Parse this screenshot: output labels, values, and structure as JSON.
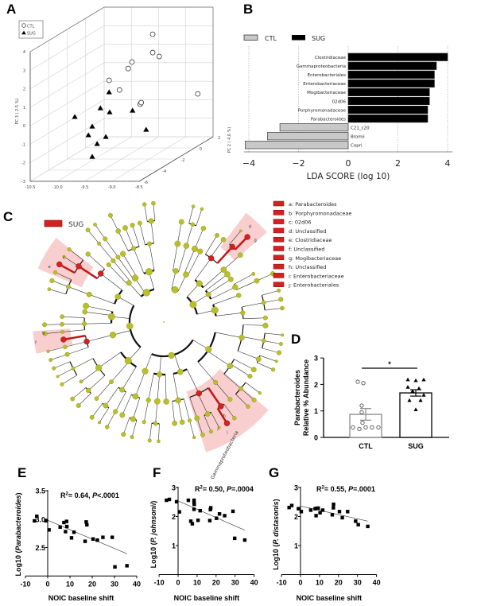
{
  "panel_labels": {
    "a": "A",
    "b": "B",
    "c": "C",
    "d": "D",
    "e": "E",
    "f": "F",
    "g": "G"
  },
  "colors": {
    "sug_red": "#d42020",
    "node_green": "#b8bf2b",
    "highlight_pink": "#f4a6a6",
    "ctl_gray": "#c8c8c8",
    "sug_black": "#000000"
  },
  "chart_data": [
    {
      "type": "scatter",
      "projection": "3d",
      "ylabel": "PC 3 ( 2.5 %)",
      "zlabel": "PC 2 ( 4.6 %)",
      "xlim": [
        -10.5,
        -8.5
      ],
      "ylim": [
        -3,
        4
      ],
      "zlim": [
        -6,
        2
      ],
      "xticks": [
        "-10.5",
        "-10.0",
        "-9.5",
        "-9.0",
        "-8.5"
      ],
      "yticks": [
        "-3",
        "-2",
        "-1",
        "0",
        "1",
        "2",
        "3",
        "4"
      ],
      "zticks": [
        "-6",
        "-4",
        "-2",
        "0",
        "2"
      ],
      "grid": true,
      "legend": "top-left",
      "series": [
        {
          "name": "CTL",
          "marker": "circle-open",
          "points": [
            [
              -8.93,
              -2,
              3.74
            ],
            [
              -8.93,
              -2,
              2.75
            ],
            [
              -8.81,
              -2,
              2.54
            ],
            [
              -9.31,
              -2,
              2.24
            ],
            [
              -9.38,
              -2,
              1.89
            ],
            [
              -9.73,
              -2,
              1.25
            ],
            [
              -9.54,
              -2,
              0.73
            ],
            [
              -9.16,
              -2,
              -0.04
            ],
            [
              -9.14,
              -2,
              0.05
            ],
            [
              -8.78,
              2,
              -0.68
            ]
          ]
        },
        {
          "name": "SUG",
          "marker": "triangle-filled",
          "points": [
            [
              -9.73,
              -2,
              0.61
            ],
            [
              -9.89,
              -2,
              -0.25
            ],
            [
              -9.72,
              -2,
              -0.47
            ],
            [
              -9.3,
              -2,
              -0.38
            ],
            [
              -10.36,
              -2,
              -0.72
            ],
            [
              -10.04,
              -2,
              -1.24
            ],
            [
              -10.11,
              -2,
              -1.71
            ],
            [
              -9.79,
              -2,
              -1.8
            ],
            [
              -9.95,
              -2,
              -2.18
            ],
            [
              -9.05,
              -2,
              -1.41
            ],
            [
              -10.04,
              -2,
              -2.87
            ]
          ]
        }
      ]
    },
    {
      "type": "bar",
      "orientation": "horizontal",
      "xlabel": "LDA SCORE (log 10)",
      "xlim": [
        -4.2,
        4.2
      ],
      "xticks": [
        "−4",
        "−2",
        "0",
        "2",
        "4"
      ],
      "grid": true,
      "legend": "top-left",
      "legend_entries": [
        {
          "name": "CTL",
          "color": "#c8c8c8"
        },
        {
          "name": "SUG",
          "color": "#000000"
        }
      ],
      "categories": [
        "Clostridiaceae",
        "Gammaproteobacteria",
        "Enterobacteriales",
        "Enterobacteriaceae",
        "Mogibacteriaceae",
        "02d06",
        "Porphyromonadaceae",
        "Parabacteroides",
        "C21_c20",
        "Bromii",
        "Copri"
      ],
      "values": [
        4.0,
        3.55,
        3.47,
        3.47,
        3.27,
        3.27,
        3.2,
        3.2,
        -2.75,
        -3.25,
        -4.15
      ],
      "groups": [
        "SUG",
        "SUG",
        "SUG",
        "SUG",
        "SUG",
        "SUG",
        "SUG",
        "SUG",
        "CTL",
        "CTL",
        "CTL"
      ]
    },
    {
      "type": "bar",
      "ylabel_italic": "Parabacteroides",
      "ylabel": "Relative % Abundance",
      "ylim": [
        0,
        3
      ],
      "yticks": [
        "0",
        "1",
        "2",
        "3"
      ],
      "categories": [
        "CTL",
        "SUG"
      ],
      "values": [
        0.87,
        1.68
      ],
      "sem": [
        0.22,
        0.12
      ],
      "points": [
        [
          2.1,
          2.05,
          1.2,
          0.95,
          0.55,
          0.38,
          0.32,
          0.38,
          0.38,
          0.38
        ],
        [
          2.18,
          2.15,
          2.18,
          1.9,
          1.75,
          1.85,
          1.6,
          1.4,
          1.4,
          1.05
        ]
      ],
      "significance": "*"
    },
    {
      "type": "scatter",
      "xlabel": "NOIC baseline shift",
      "ylabel_prefix": "Log10 (",
      "ylabel_italic": "Parabacteroides",
      "ylabel_suffix": ")",
      "xlim": [
        -10,
        40
      ],
      "ylim": [
        2.0,
        3.5
      ],
      "xticks": [
        "-10",
        "0",
        "10",
        "20",
        "30",
        "40"
      ],
      "yticks": [
        "2.5",
        "3.0",
        "3.5"
      ],
      "annotation": {
        "r": "R",
        "sup": "2",
        "mid": "= 0.64, ",
        "p": "P",
        "pval": "<.0001"
      },
      "fit": [
        [
          0,
          2.98
        ],
        [
          35.6,
          2.39
        ]
      ],
      "points": [
        [
          -5.95,
          2.97
        ],
        [
          -4.9,
          3.05
        ],
        [
          -0.7,
          2.97
        ],
        [
          0.6,
          2.81
        ],
        [
          5.6,
          2.86
        ],
        [
          7.3,
          2.94
        ],
        [
          8.5,
          2.96
        ],
        [
          8.6,
          2.87
        ],
        [
          8.0,
          2.78
        ],
        [
          10.7,
          2.67
        ],
        [
          11.8,
          2.77
        ],
        [
          16.8,
          2.61
        ],
        [
          17.3,
          2.95
        ],
        [
          17.6,
          2.9
        ],
        [
          20.4,
          2.65
        ],
        [
          22.3,
          2.63
        ],
        [
          24.8,
          2.68
        ],
        [
          29.0,
          2.68
        ],
        [
          30.2,
          2.16
        ],
        [
          35.6,
          2.18
        ]
      ]
    },
    {
      "type": "scatter",
      "xlabel": "NOIC baseline shift",
      "ylabel_prefix": "Log10 (",
      "ylabel_italic": "P. johnsonii",
      "ylabel_suffix": ")",
      "xlim": [
        -10,
        40
      ],
      "ylim": [
        0,
        3
      ],
      "xticks": [
        "-10",
        "0",
        "10",
        "20",
        "30",
        "40"
      ],
      "yticks": [
        "1",
        "2",
        "3"
      ],
      "annotation": {
        "r": "R",
        "sup": "2",
        "mid": "= 0.50, ",
        "p": "P",
        "pval": "=.0004"
      },
      "fit": [
        [
          0,
          2.54
        ],
        [
          35.1,
          1.53
        ]
      ],
      "points": [
        [
          -6.1,
          2.56
        ],
        [
          -4.6,
          2.59
        ],
        [
          -0.8,
          2.51
        ],
        [
          0.7,
          2.16
        ],
        [
          5.4,
          2.56
        ],
        [
          8.4,
          2.56
        ],
        [
          8.4,
          2.48
        ],
        [
          8.5,
          2.42
        ],
        [
          8.4,
          2.25
        ],
        [
          6.7,
          1.84
        ],
        [
          7.5,
          1.75
        ],
        [
          10.5,
          1.87
        ],
        [
          11.6,
          2.2
        ],
        [
          17.2,
          2.3
        ],
        [
          17.0,
          2.24
        ],
        [
          16.7,
          1.86
        ],
        [
          20.2,
          1.94
        ],
        [
          21.8,
          2.09
        ],
        [
          24.5,
          2.03
        ],
        [
          28.9,
          2.18
        ],
        [
          29.8,
          1.25
        ],
        [
          35.1,
          1.19
        ]
      ]
    },
    {
      "type": "scatter",
      "xlabel": "NOIC baseline shift",
      "ylabel_prefix": "Log10 (",
      "ylabel_italic": "P. distasonis",
      "ylabel_suffix": ")",
      "xlim": [
        -10,
        40
      ],
      "ylim": [
        0,
        3
      ],
      "xticks": [
        "-10",
        "0",
        "10",
        "20",
        "30",
        "40"
      ],
      "yticks": [
        "1",
        "2",
        "3"
      ],
      "annotation": {
        "r": "R",
        "sup": "2",
        "mid": "= 0.55, ",
        "p": "P",
        "pval": "=.0001"
      },
      "fit": [
        [
          0,
          2.36
        ],
        [
          35.4,
          1.84
        ]
      ],
      "points": [
        [
          -6.0,
          2.31
        ],
        [
          -4.6,
          2.38
        ],
        [
          -1.1,
          2.27
        ],
        [
          0.4,
          2.17
        ],
        [
          5.4,
          2.22
        ],
        [
          7.7,
          2.27
        ],
        [
          9.3,
          2.29
        ],
        [
          8.4,
          2.28
        ],
        [
          8.2,
          2.03
        ],
        [
          10.3,
          2.13
        ],
        [
          11.7,
          2.22
        ],
        [
          16.7,
          2.06
        ],
        [
          17.3,
          2.3
        ],
        [
          17.4,
          2.42
        ],
        [
          20.5,
          2.17
        ],
        [
          22.0,
          1.96
        ],
        [
          24.8,
          2.17
        ],
        [
          29.0,
          1.84
        ],
        [
          30.4,
          1.72
        ],
        [
          35.4,
          1.66
        ]
      ]
    }
  ],
  "cladogram": {
    "legend_label": "SUG",
    "clade_label": "Gammaproteobacteria",
    "highlight_letters": [
      "e",
      "c",
      "d",
      "g",
      "f",
      "g",
      "i",
      "j",
      "h"
    ],
    "key": [
      "a: Parabacteroides",
      "b: Porphyromonadaceae",
      "c: 02d06",
      "d: Unclassified",
      "e: Clostridiaceae",
      "f: Unclassified",
      "g: Mogibacteriaceae",
      "h: Unclassified",
      "i: Enterobacteriaceae",
      "j: Enterobacteriales"
    ]
  }
}
